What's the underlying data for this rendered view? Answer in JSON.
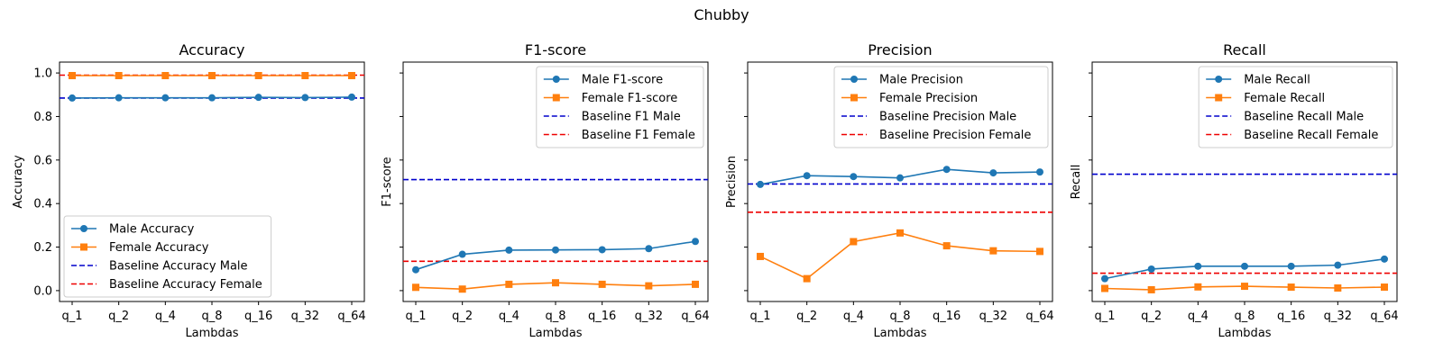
{
  "figure_title": "Chubby",
  "colors": {
    "male": "#1f77b4",
    "female": "#ff7f0e",
    "baseline_male": "#0000cc",
    "baseline_female": "#ee0000"
  },
  "chart_data": [
    {
      "type": "line",
      "title": "Accuracy",
      "xlabel": "Lambdas",
      "ylabel": "Accuracy",
      "categories": [
        "q_1",
        "q_2",
        "q_4",
        "q_8",
        "q_16",
        "q_32",
        "q_64"
      ],
      "ylim": [
        -0.05,
        1.05
      ],
      "yticks": [
        "0.0",
        "0.2",
        "0.4",
        "0.6",
        "0.8",
        "1.0"
      ],
      "ytick_values": [
        0.0,
        0.2,
        0.4,
        0.6,
        0.8,
        1.0
      ],
      "legend_placement": "lower-left",
      "series": [
        {
          "name": "Male Accuracy",
          "marker": "circle",
          "values": [
            0.885,
            0.886,
            0.886,
            0.886,
            0.888,
            0.887,
            0.889
          ]
        },
        {
          "name": "Female Accuracy",
          "marker": "square",
          "values": [
            0.988,
            0.988,
            0.988,
            0.988,
            0.988,
            0.988,
            0.988
          ]
        }
      ],
      "baselines": [
        {
          "name": "Baseline Accuracy Male",
          "value": 0.885
        },
        {
          "name": "Baseline Accuracy Female",
          "value": 0.99
        }
      ]
    },
    {
      "type": "line",
      "title": "F1-score",
      "xlabel": "Lambdas",
      "ylabel": "F1-score",
      "categories": [
        "q_1",
        "q_2",
        "q_4",
        "q_8",
        "q_16",
        "q_32",
        "q_64"
      ],
      "ylim": [
        -0.05,
        1.05
      ],
      "yticks": [],
      "ytick_values": [
        0.0,
        0.2,
        0.4,
        0.6,
        0.8,
        1.0
      ],
      "legend_placement": "upper-right",
      "series": [
        {
          "name": "Male F1-score",
          "marker": "circle",
          "values": [
            0.096,
            0.167,
            0.186,
            0.187,
            0.188,
            0.193,
            0.226
          ]
        },
        {
          "name": "Female F1-score",
          "marker": "square",
          "values": [
            0.015,
            0.007,
            0.029,
            0.036,
            0.029,
            0.022,
            0.029
          ]
        }
      ],
      "baselines": [
        {
          "name": "Baseline F1 Male",
          "value": 0.51
        },
        {
          "name": "Baseline F1 Female",
          "value": 0.135
        }
      ]
    },
    {
      "type": "line",
      "title": "Precision",
      "xlabel": "Lambdas",
      "ylabel": "Precision",
      "categories": [
        "q_1",
        "q_2",
        "q_4",
        "q_8",
        "q_16",
        "q_32",
        "q_64"
      ],
      "ylim": [
        -0.05,
        1.05
      ],
      "yticks": [],
      "ytick_values": [
        0.0,
        0.2,
        0.4,
        0.6,
        0.8,
        1.0
      ],
      "legend_placement": "upper-right",
      "series": [
        {
          "name": "Male Precision",
          "marker": "circle",
          "values": [
            0.488,
            0.528,
            0.524,
            0.518,
            0.557,
            0.541,
            0.545
          ]
        },
        {
          "name": "Female Precision",
          "marker": "square",
          "values": [
            0.157,
            0.055,
            0.225,
            0.265,
            0.206,
            0.183,
            0.18
          ]
        }
      ],
      "baselines": [
        {
          "name": "Baseline Precision Male",
          "value": 0.49
        },
        {
          "name": "Baseline Precision Female",
          "value": 0.36
        }
      ]
    },
    {
      "type": "line",
      "title": "Recall",
      "xlabel": "Lambdas",
      "ylabel": "Recall",
      "categories": [
        "q_1",
        "q_2",
        "q_4",
        "q_8",
        "q_16",
        "q_32",
        "q_64"
      ],
      "ylim": [
        -0.05,
        1.05
      ],
      "yticks": [],
      "ytick_values": [
        0.0,
        0.2,
        0.4,
        0.6,
        0.8,
        1.0
      ],
      "legend_placement": "upper-right",
      "series": [
        {
          "name": "Male Recall",
          "marker": "circle",
          "values": [
            0.055,
            0.099,
            0.112,
            0.112,
            0.112,
            0.117,
            0.145
          ]
        },
        {
          "name": "Female Recall",
          "marker": "square",
          "values": [
            0.01,
            0.004,
            0.017,
            0.02,
            0.016,
            0.012,
            0.016
          ]
        }
      ],
      "baselines": [
        {
          "name": "Baseline Recall Male",
          "value": 0.535
        },
        {
          "name": "Baseline Recall Female",
          "value": 0.08
        }
      ]
    }
  ]
}
